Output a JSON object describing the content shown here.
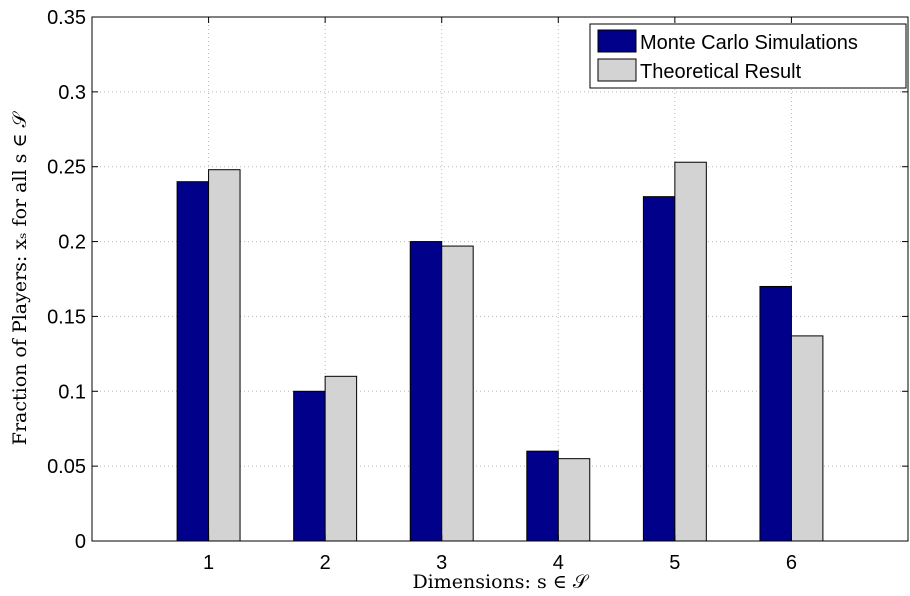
{
  "chart_data": {
    "type": "bar",
    "categories": [
      "1",
      "2",
      "3",
      "4",
      "5",
      "6"
    ],
    "series": [
      {
        "name": "Monte Carlo Simulations",
        "values": [
          0.24,
          0.1,
          0.2,
          0.06,
          0.23,
          0.17
        ],
        "color": "#00008b"
      },
      {
        "name": "Theoretical Result",
        "values": [
          0.248,
          0.11,
          0.197,
          0.055,
          0.253,
          0.137
        ],
        "color": "#d3d3d3"
      }
    ],
    "xlabel": "Dimensions: s ∈ 𝒮",
    "ylabel": "Fraction of Players: xₛ for all s ∈ 𝒮",
    "ylim": [
      0,
      0.35
    ],
    "xlim": [
      0,
      7
    ],
    "yticks": [
      "0",
      "0.05",
      "0.1",
      "0.15",
      "0.2",
      "0.25",
      "0.3",
      "0.35"
    ],
    "grid": true,
    "legend_position": "top-right"
  }
}
